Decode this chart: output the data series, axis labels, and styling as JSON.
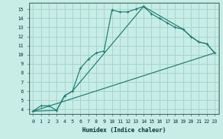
{
  "xlabel": "Humidex (Indice chaleur)",
  "bg_color": "#c8ece6",
  "grid_color": "#a0d4cc",
  "line_color": "#1a7a6e",
  "xlim": [
    -0.5,
    23.5
  ],
  "ylim": [
    3.5,
    15.7
  ],
  "xticks": [
    0,
    1,
    2,
    3,
    4,
    5,
    6,
    7,
    8,
    9,
    10,
    11,
    12,
    13,
    14,
    15,
    16,
    17,
    18,
    19,
    20,
    21,
    22,
    23
  ],
  "yticks": [
    4,
    5,
    6,
    7,
    8,
    9,
    10,
    11,
    12,
    13,
    14,
    15
  ],
  "line1_x": [
    0,
    1,
    2,
    3,
    4,
    5,
    6,
    7,
    8,
    9,
    10,
    11,
    12,
    13,
    14,
    15,
    16,
    17,
    18,
    19,
    20,
    21,
    22,
    23
  ],
  "line1_y": [
    3.8,
    4.4,
    4.4,
    3.9,
    5.5,
    6.0,
    8.5,
    9.5,
    10.2,
    10.4,
    14.9,
    14.7,
    14.7,
    15.0,
    15.3,
    14.5,
    14.0,
    13.5,
    13.0,
    12.8,
    12.0,
    11.4,
    11.2,
    10.2
  ],
  "line2_x": [
    0,
    3,
    4,
    5,
    14,
    19,
    20,
    21,
    22,
    23
  ],
  "line2_y": [
    3.8,
    3.9,
    5.5,
    6.0,
    15.3,
    12.8,
    12.0,
    11.4,
    11.2,
    10.2
  ],
  "line3_x": [
    0,
    23
  ],
  "line3_y": [
    3.8,
    10.2
  ]
}
